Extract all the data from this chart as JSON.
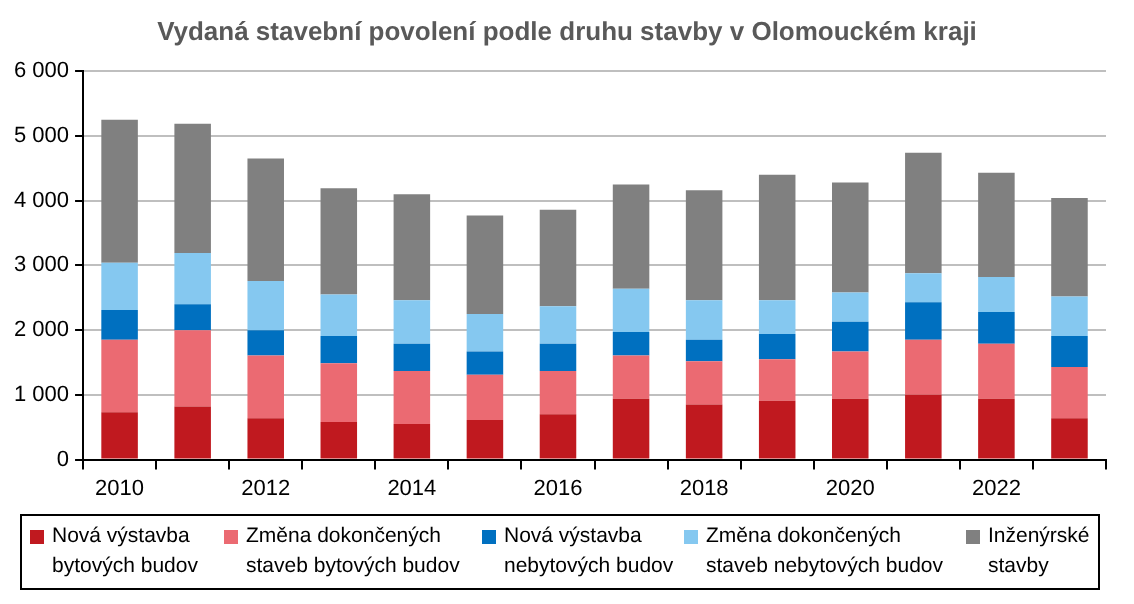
{
  "chart_data": {
    "type": "bar",
    "title": "Vydaná stavební povolení podle druhu stavby  v Olomouckém kraji",
    "stacked": true,
    "categories": [
      "2010",
      null,
      "2012",
      null,
      "2014",
      null,
      "2016",
      null,
      "2018",
      null,
      "2020",
      null,
      "2022",
      null
    ],
    "series": [
      {
        "name": "Nová výstavba bytových budov",
        "color": "#c0191f",
        "values": [
          730,
          820,
          640,
          580,
          550,
          610,
          700,
          940,
          850,
          910,
          940,
          1000,
          940,
          640
        ]
      },
      {
        "name": "Změna dokončených staveb bytových budov",
        "color": "#eb6a72",
        "values": [
          1120,
          1180,
          970,
          910,
          820,
          700,
          670,
          670,
          670,
          640,
          730,
          850,
          850,
          790
        ]
      },
      {
        "name": "Nová výstavba nebytových budov",
        "color": "#0070c0",
        "values": [
          460,
          400,
          390,
          420,
          420,
          360,
          420,
          360,
          330,
          390,
          460,
          580,
          490,
          480
        ]
      },
      {
        "name": "Změna dokončených staveb nebytových budov",
        "color": "#85c8f0",
        "values": [
          730,
          790,
          760,
          640,
          670,
          580,
          580,
          670,
          610,
          520,
          450,
          450,
          540,
          610
        ]
      },
      {
        "name": "Inženýrské stavby",
        "color": "#808080",
        "values": [
          2210,
          2000,
          1890,
          1640,
          1640,
          1520,
          1490,
          1610,
          1700,
          1940,
          1700,
          1860,
          1610,
          1520
        ]
      }
    ],
    "ylim": [
      0,
      6000
    ],
    "yticks": [
      0,
      1000,
      2000,
      3000,
      4000,
      5000,
      6000
    ],
    "grid": "y",
    "legend": "bottom"
  }
}
